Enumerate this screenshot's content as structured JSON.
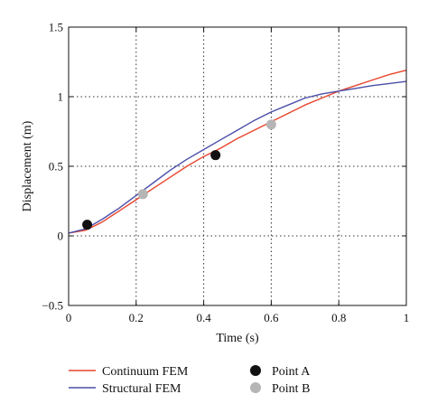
{
  "chart_data": {
    "type": "line",
    "xlabel": "Time (s)",
    "ylabel": "Displacement (m)",
    "xlim": [
      0,
      1
    ],
    "ylim": [
      -0.5,
      1.5
    ],
    "grid": true,
    "x_ticks": [
      0,
      0.2,
      0.4,
      0.6,
      0.8,
      1
    ],
    "x_tick_labels": [
      "0",
      "0.2",
      "0.4",
      "0.6",
      "0.8",
      "1"
    ],
    "y_ticks": [
      -0.5,
      0,
      0.5,
      1,
      1.5
    ],
    "y_tick_labels": [
      "−0.5",
      "0",
      "0.5",
      "1",
      "1.5"
    ],
    "legend_position": "bottom",
    "series": [
      {
        "name": "Continuum FEM",
        "kind": "line",
        "color": "#e8452c",
        "x": [
          0,
          0.05,
          0.1,
          0.15,
          0.2,
          0.25,
          0.3,
          0.35,
          0.4,
          0.45,
          0.5,
          0.55,
          0.6,
          0.65,
          0.7,
          0.75,
          0.8,
          0.85,
          0.9,
          0.95,
          1.0
        ],
        "y": [
          0.02,
          0.04,
          0.1,
          0.18,
          0.26,
          0.34,
          0.42,
          0.5,
          0.57,
          0.63,
          0.7,
          0.76,
          0.82,
          0.88,
          0.94,
          0.99,
          1.04,
          1.08,
          1.12,
          1.16,
          1.19
        ]
      },
      {
        "name": "Structural FEM",
        "kind": "line",
        "color": "#4a4fa8",
        "x": [
          0,
          0.05,
          0.1,
          0.15,
          0.2,
          0.25,
          0.3,
          0.35,
          0.4,
          0.45,
          0.5,
          0.55,
          0.6,
          0.65,
          0.7,
          0.75,
          0.8,
          0.85,
          0.9,
          0.95,
          1.0
        ],
        "y": [
          0.02,
          0.05,
          0.12,
          0.2,
          0.29,
          0.38,
          0.47,
          0.55,
          0.62,
          0.69,
          0.76,
          0.83,
          0.89,
          0.94,
          0.99,
          1.02,
          1.04,
          1.06,
          1.08,
          1.095,
          1.11
        ]
      },
      {
        "name": "Point A",
        "kind": "points",
        "color": "#111111",
        "x": [
          0.055,
          0.435
        ],
        "y": [
          0.08,
          0.58
        ]
      },
      {
        "name": "Point B",
        "kind": "points",
        "color": "#b5b5b5",
        "x": [
          0.22,
          0.6
        ],
        "y": [
          0.3,
          0.8
        ]
      }
    ]
  }
}
